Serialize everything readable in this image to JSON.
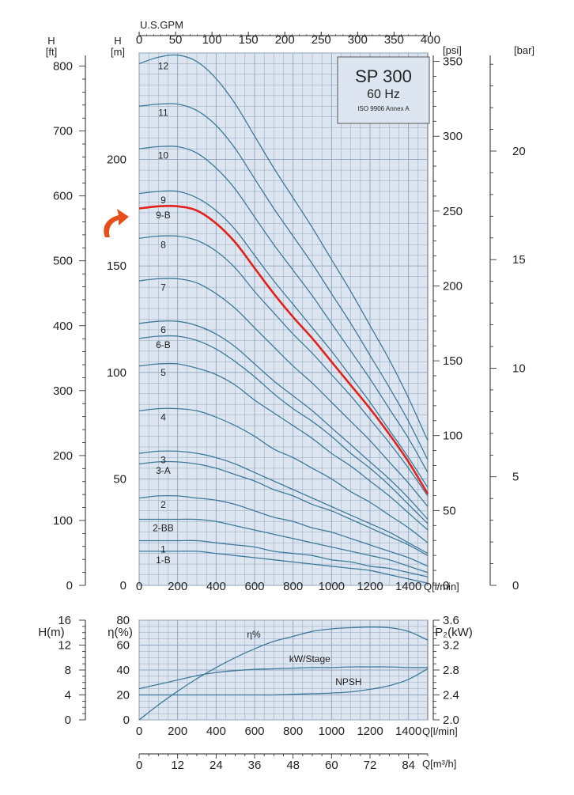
{
  "chart_data": [
    {
      "type": "line",
      "title": "SP 300",
      "subtitle": "60 Hz",
      "note": "ISO 9906 Annex A",
      "xlabel": "Q[l/min]",
      "ylabel_m": "H [m]",
      "ylabel_ft": "H [ft]",
      "ylabel_psi": "[psi]",
      "ylabel_bar": "[bar]",
      "top_axis_label": "U.S.GPM",
      "xlim": [
        0,
        1500
      ],
      "ylim": [
        0,
        250
      ],
      "x_ticks": [
        0,
        200,
        400,
        600,
        800,
        1000,
        1200,
        1400
      ],
      "y_ticks_m": [
        0,
        50,
        100,
        150,
        200
      ],
      "y_ticks_ft": [
        0,
        100,
        200,
        300,
        400,
        500,
        600,
        700,
        800
      ],
      "y_ticks_psi": [
        0,
        50,
        100,
        150,
        200,
        250,
        300,
        350
      ],
      "y_ticks_bar": [
        0,
        5,
        10,
        15,
        20
      ],
      "gpm_ticks": [
        0,
        50,
        100,
        150,
        200,
        250,
        300,
        350,
        400
      ],
      "grid": true,
      "highlight_series": "9-B",
      "x": [
        0,
        100,
        200,
        300,
        400,
        500,
        600,
        700,
        800,
        900,
        1000,
        1100,
        1200,
        1300,
        1400,
        1500
      ],
      "series": [
        {
          "name": "12",
          "values": [
            245,
            248,
            249,
            246,
            238,
            226,
            211,
            196,
            182,
            168,
            153,
            138,
            122,
            106,
            88,
            68
          ]
        },
        {
          "name": "11",
          "values": [
            225,
            226,
            226,
            223,
            216,
            205,
            191,
            177,
            164,
            151,
            137,
            123,
            108,
            93,
            77,
            59
          ]
        },
        {
          "name": "10",
          "values": [
            205,
            206,
            206,
            203,
            196,
            186,
            173,
            160,
            148,
            136,
            123,
            110,
            97,
            83,
            69,
            53
          ]
        },
        {
          "name": "9",
          "values": [
            184,
            185,
            185,
            182,
            176,
            167,
            155,
            143,
            132,
            121,
            110,
            98,
            86,
            73,
            60,
            46
          ]
        },
        {
          "name": "9-B",
          "values": [
            177,
            178,
            178,
            176,
            170,
            161,
            149,
            137,
            126,
            116,
            105,
            94,
            83,
            71,
            58,
            43
          ]
        },
        {
          "name": "8",
          "values": [
            163,
            164,
            164,
            162,
            157,
            149,
            138,
            128,
            118,
            109,
            99,
            89,
            78,
            67,
            55,
            42
          ]
        },
        {
          "name": "7",
          "values": [
            143,
            144,
            144,
            142,
            137,
            130,
            121,
            112,
            103,
            95,
            86,
            77,
            68,
            58,
            48,
            37
          ]
        },
        {
          "name": "6",
          "values": [
            123,
            124,
            124,
            122,
            118,
            112,
            104,
            96,
            89,
            82,
            74,
            66,
            58,
            50,
            41,
            31
          ]
        },
        {
          "name": "6-B",
          "values": [
            116,
            117,
            117,
            115,
            111,
            105,
            98,
            90,
            83,
            77,
            70,
            62,
            55,
            47,
            38,
            29
          ]
        },
        {
          "name": "5",
          "values": [
            103,
            104,
            104,
            102,
            99,
            94,
            87,
            81,
            75,
            69,
            62,
            56,
            49,
            42,
            34,
            26
          ]
        },
        {
          "name": "4",
          "values": [
            82,
            83,
            83,
            82,
            79,
            75,
            70,
            64,
            60,
            55,
            50,
            44,
            39,
            33,
            27,
            20
          ]
        },
        {
          "name": "3",
          "values": [
            62,
            63,
            63,
            62,
            60,
            57,
            53,
            49,
            45,
            41,
            37,
            33,
            29,
            25,
            20,
            15
          ]
        },
        {
          "name": "3-A",
          "values": [
            57,
            58,
            58,
            57,
            55,
            52,
            49,
            45,
            42,
            38,
            35,
            31,
            27,
            23,
            19,
            14
          ]
        },
        {
          "name": "2",
          "values": [
            41,
            42,
            42,
            41,
            40,
            38,
            35,
            32,
            30,
            27,
            25,
            22,
            19,
            16,
            13,
            9
          ]
        },
        {
          "name": "2-BB",
          "values": [
            31,
            31,
            31,
            31,
            30,
            28,
            26,
            24,
            22,
            20,
            18,
            16,
            14,
            12,
            9,
            6
          ]
        },
        {
          "name": "1",
          "values": [
            21,
            21,
            21,
            21,
            20,
            19,
            18,
            16,
            15,
            14,
            12,
            11,
            9,
            8,
            6,
            4
          ]
        },
        {
          "name": "1-B",
          "values": [
            16,
            16,
            16,
            16,
            15,
            14,
            13,
            12,
            11,
            10,
            9,
            8,
            7,
            5,
            3,
            1
          ]
        }
      ]
    },
    {
      "type": "line",
      "xlabel": "Q[l/min]",
      "xlabel_m3h": "Q[m³/h]",
      "ylabel_h": "H(m)",
      "ylabel_eta": "η(%)",
      "ylabel_p2": "P₂(kW)",
      "xlim": [
        0,
        1500
      ],
      "x_ticks": [
        0,
        200,
        400,
        600,
        800,
        1000,
        1200,
        1400
      ],
      "m3h_ticks": [
        0,
        12,
        24,
        36,
        48,
        60,
        72,
        84
      ],
      "y_ticks_h": [
        0,
        4,
        8,
        12,
        16
      ],
      "y_ticks_eta": [
        0,
        20,
        40,
        60,
        80
      ],
      "y_ticks_p2": [
        2.0,
        2.4,
        2.8,
        3.2,
        3.6
      ],
      "grid": true,
      "x": [
        0,
        100,
        200,
        300,
        400,
        500,
        600,
        700,
        800,
        900,
        1000,
        1100,
        1200,
        1300,
        1400,
        1500
      ],
      "series": [
        {
          "name": "η%",
          "axis": "eta",
          "values": [
            0,
            12,
            23,
            33,
            42,
            50,
            57,
            63,
            67,
            71,
            73,
            74,
            74.5,
            74,
            71,
            64
          ]
        },
        {
          "name": "kW/Stage",
          "axis": "p2",
          "values": [
            2.5,
            2.57,
            2.64,
            2.71,
            2.76,
            2.79,
            2.81,
            2.82,
            2.83,
            2.84,
            2.84,
            2.85,
            2.85,
            2.85,
            2.84,
            2.84
          ]
        },
        {
          "name": "NPSH",
          "axis": "h",
          "values": [
            4,
            4,
            4,
            4,
            4,
            4,
            4,
            4,
            4.1,
            4.2,
            4.3,
            4.5,
            4.9,
            5.5,
            6.5,
            8.2
          ]
        }
      ]
    }
  ]
}
